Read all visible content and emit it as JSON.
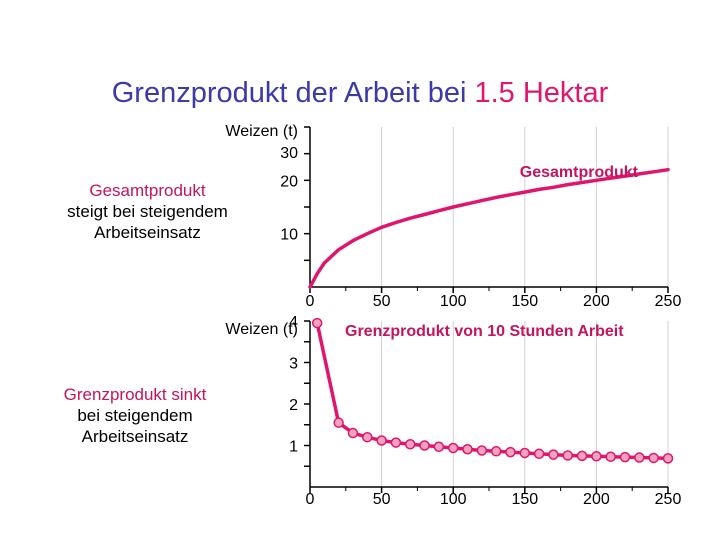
{
  "title": {
    "prefix": "Grenzprodukt der Arbeit bei ",
    "highlight": "1.5 Hektar"
  },
  "notes": {
    "top": {
      "accent": "Gesamtprodukt",
      "rest": "steigt bei steigendem Arbeitseinsatz"
    },
    "bottom": {
      "accent": "Grenzprodukt sinkt",
      "rest": "bei steigendem Arbeitseinsatz"
    }
  },
  "colors": {
    "title": "#3a3aa8",
    "accent": "#e0166e",
    "series": "#e0166e",
    "marker_fill": "#f4a3bf",
    "axis": "#000000",
    "grid": "#d0d0d0"
  },
  "chart_data": [
    {
      "type": "line",
      "y_unit": "Weizen (t)",
      "series_label": "Gesamtprodukt",
      "xlim": [
        0,
        250
      ],
      "ylim": [
        0,
        30
      ],
      "x_ticks": [
        0,
        50,
        100,
        150,
        200,
        250
      ],
      "y_ticks": [
        10,
        20,
        30
      ],
      "y_tick_labels": [
        "10",
        "20",
        "30"
      ],
      "x": [
        0,
        5,
        10,
        20,
        30,
        40,
        50,
        60,
        70,
        80,
        90,
        100,
        110,
        120,
        130,
        140,
        150,
        160,
        170,
        180,
        190,
        200,
        210,
        220,
        230,
        240,
        250
      ],
      "y": [
        0,
        2.5,
        4.5,
        7.0,
        8.7,
        10.0,
        11.2,
        12.1,
        12.9,
        13.6,
        14.3,
        15.0,
        15.6,
        16.2,
        16.8,
        17.3,
        17.8,
        18.3,
        18.7,
        19.2,
        19.6,
        20.0,
        20.4,
        20.8,
        21.2,
        21.6,
        22.0
      ],
      "grid": true
    },
    {
      "type": "line",
      "y_unit": "Weizen (t)",
      "series_label": "Grenzprodukt von 10 Stunden Arbeit",
      "xlim": [
        0,
        250
      ],
      "ylim": [
        0,
        4
      ],
      "x_ticks": [
        0,
        50,
        100,
        150,
        200,
        250
      ],
      "y_ticks": [
        1,
        2,
        3,
        4
      ],
      "y_tick_labels": [
        "1",
        "2",
        "3",
        "4"
      ],
      "x": [
        5,
        20,
        30,
        40,
        50,
        60,
        70,
        80,
        90,
        100,
        110,
        120,
        130,
        140,
        150,
        160,
        170,
        180,
        190,
        200,
        210,
        220,
        230,
        240,
        250
      ],
      "y": [
        3.95,
        1.55,
        1.3,
        1.2,
        1.12,
        1.07,
        1.03,
        1.0,
        0.97,
        0.94,
        0.91,
        0.88,
        0.86,
        0.84,
        0.82,
        0.8,
        0.78,
        0.76,
        0.75,
        0.74,
        0.73,
        0.72,
        0.71,
        0.7,
        0.69
      ],
      "markers": true,
      "grid": true
    }
  ]
}
